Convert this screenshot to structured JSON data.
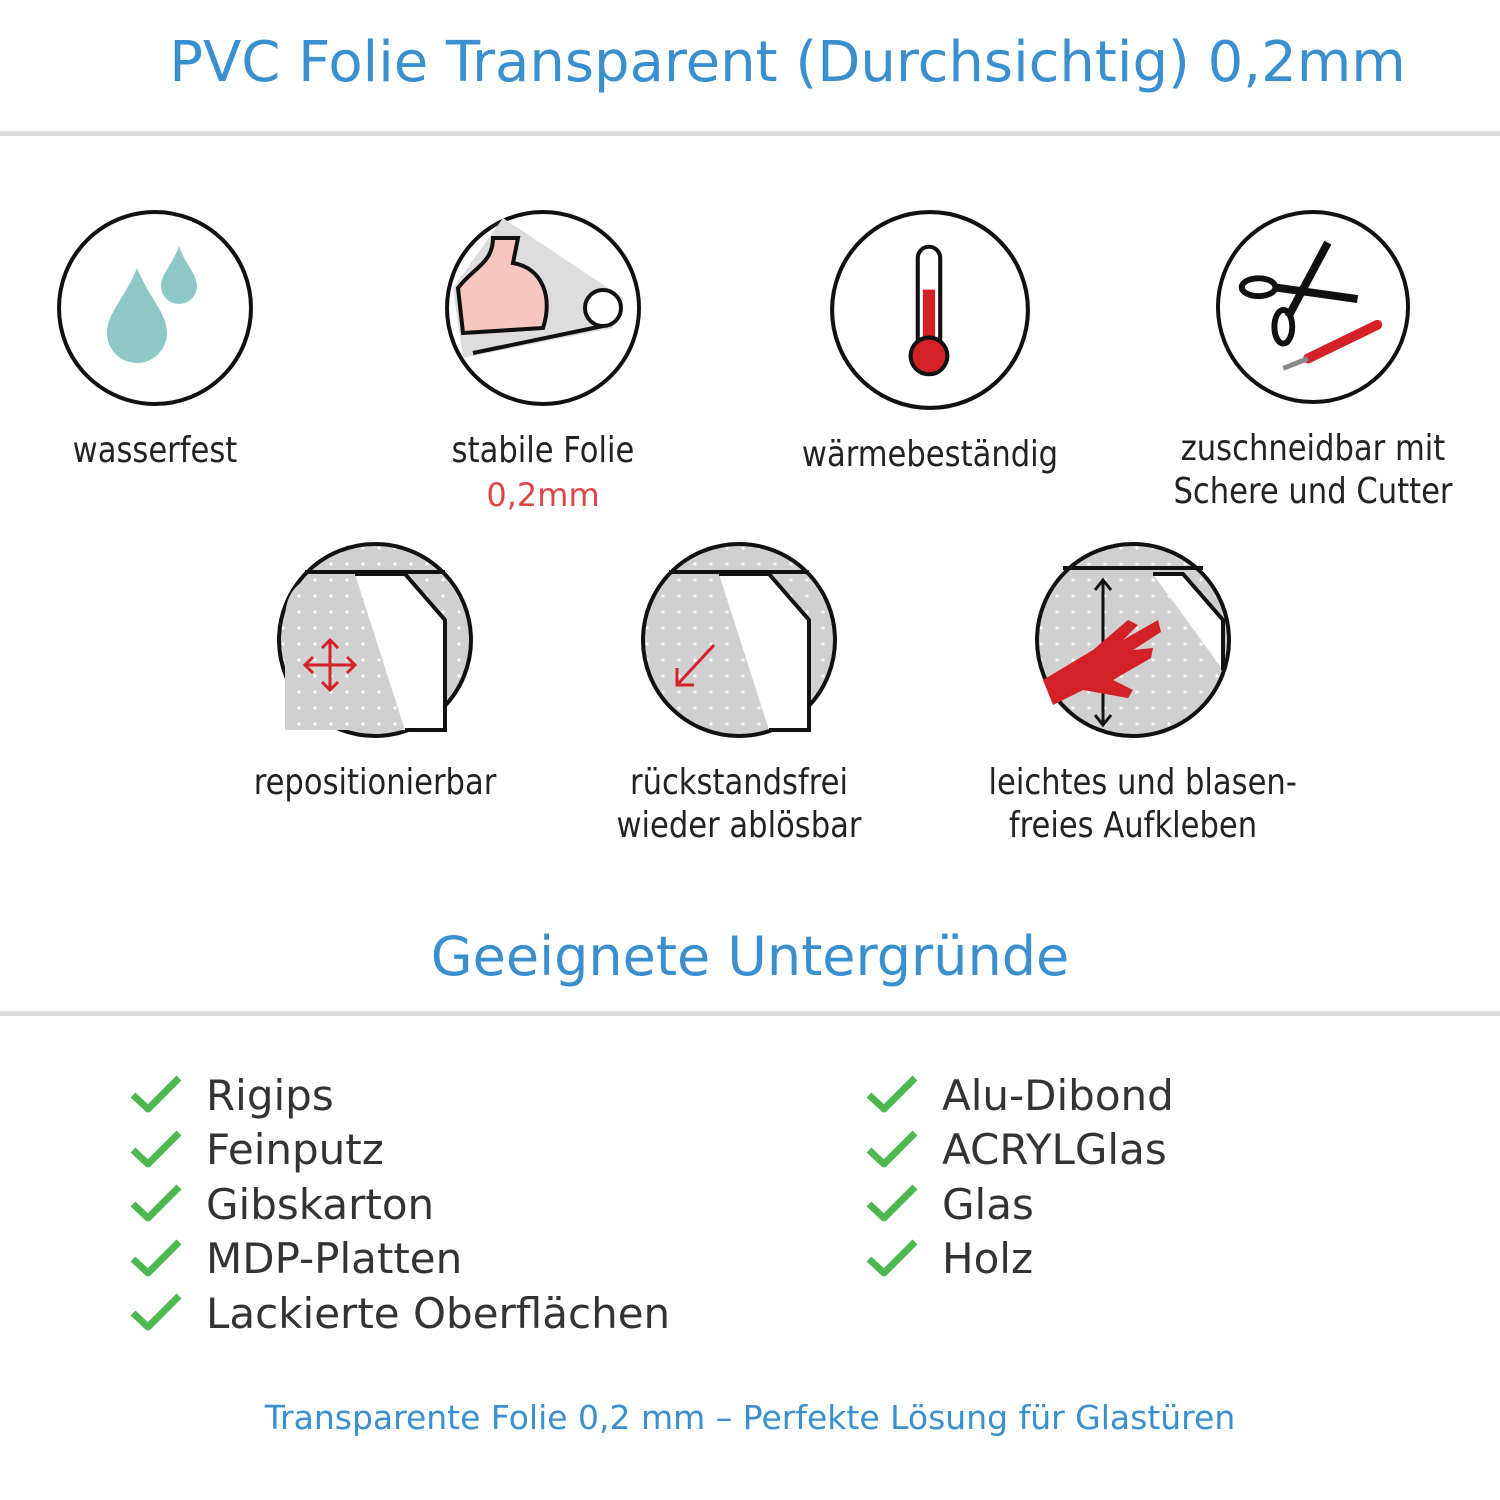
{
  "title": "PVC Folie Transparent (Durchsichtig) 0,2mm",
  "features_row1": [
    {
      "icon": "water-drops-icon",
      "label": "wasserfest"
    },
    {
      "icon": "strong-arm-foil-icon",
      "label": "stabile Folie",
      "sub": "0,2mm"
    },
    {
      "icon": "thermometer-icon",
      "label": "wärmebeständig"
    },
    {
      "icon": "scissors-cutter-icon",
      "label": "zuschneidbar mit",
      "label2": "Schere und Cutter"
    }
  ],
  "features_row2": [
    {
      "icon": "move-arrows-icon",
      "label": "repositionierbar"
    },
    {
      "icon": "peel-arrow-icon",
      "label": "rückstandsfrei",
      "label2": "wieder ablösbar"
    },
    {
      "icon": "hand-smooth-icon",
      "label": "leichtes und blasen-",
      "label2": "freies Aufkleben"
    }
  ],
  "surfaces_heading": "Geeignete Untergründe",
  "surfaces_left": [
    "Rigips",
    "Feinputz",
    "Gibskarton",
    "MDP-Platten",
    "Lackierte Oberflächen"
  ],
  "surfaces_right": [
    "Alu-Dibond",
    "ACRYLGlas",
    "Glas",
    "Holz"
  ],
  "footer": "Transparente Folie 0,2 mm – Perfekte Lösung für Glastüren",
  "colors": {
    "accent": "#3a8fce",
    "check": "#4cb84f",
    "red": "#d42027",
    "drop": "#8ec8c6"
  }
}
